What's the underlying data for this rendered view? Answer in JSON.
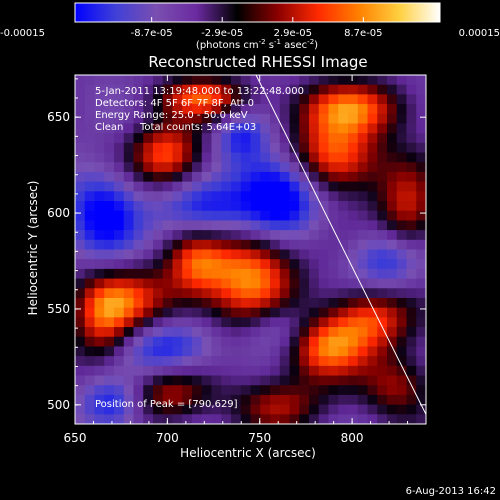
{
  "chart_data": {
    "type": "heatmap",
    "title": "Reconstructed RHESSI Image",
    "xlabel": "Heliocentric X (arcsec)",
    "ylabel": "Heliocentric Y (arcsec)",
    "xlim": [
      650,
      840
    ],
    "ylim": [
      490,
      672
    ],
    "x_ticks": [
      "650",
      "700",
      "750",
      "800"
    ],
    "x_tick_values": [
      650,
      700,
      750,
      800
    ],
    "y_ticks": [
      "500",
      "550",
      "600",
      "650"
    ],
    "y_tick_values": [
      500,
      550,
      600,
      650
    ],
    "colorbar": {
      "range": [
        -0.00015,
        0.00015
      ],
      "tick_labels": [
        "-0.00015",
        "-8.7e-05",
        "-2.9e-05",
        "2.9e-05",
        "8.7e-05",
        "0.00015"
      ],
      "tick_values": [
        -0.00015,
        -8.7e-05,
        -2.9e-05,
        2.9e-05,
        8.7e-05,
        0.00015
      ],
      "unit_label": "(photons cm",
      "unit_exp1": "-2",
      "unit_mid": " s",
      "unit_exp2": "-1",
      "unit_mid2": " asec",
      "unit_exp3": "-2",
      "unit_end": ")",
      "colors": [
        "#0000ff",
        "#4040d8",
        "#7a4fb0",
        "#6a2aa0",
        "#000000",
        "#8b0000",
        "#ff2a00",
        "#ff8000",
        "#ffd040",
        "#ffffff"
      ]
    },
    "annotations": [
      "5-Jan-2011 13:19:48.000 to 13:22:48.000",
      "Detectors: 4F 5F 6F 7F 8F, Att 0",
      "Energy Range: 25.0 - 50.0 keV",
      "Clean",
      "Total counts: 5.64E+03"
    ],
    "peak_label": "Position of Peak = [790,629]",
    "limb_line": [
      [
        748,
        672
      ],
      [
        840,
        495
      ]
    ],
    "sources": [
      {
        "x": 700,
        "y": 630,
        "sx": 14,
        "sy": 12,
        "a": 0.9
      },
      {
        "x": 720,
        "y": 660,
        "sx": 18,
        "sy": 8,
        "a": 0.8
      },
      {
        "x": 790,
        "y": 629,
        "sx": 18,
        "sy": 14,
        "a": 1.0
      },
      {
        "x": 800,
        "y": 655,
        "sx": 22,
        "sy": 10,
        "a": 0.8
      },
      {
        "x": 745,
        "y": 568,
        "sx": 18,
        "sy": 20,
        "a": 1.0
      },
      {
        "x": 715,
        "y": 575,
        "sx": 12,
        "sy": 14,
        "a": 0.7
      },
      {
        "x": 785,
        "y": 530,
        "sx": 16,
        "sy": 12,
        "a": 0.9
      },
      {
        "x": 810,
        "y": 545,
        "sx": 16,
        "sy": 12,
        "a": 0.8
      },
      {
        "x": 680,
        "y": 555,
        "sx": 20,
        "sy": 12,
        "a": 0.7
      },
      {
        "x": 665,
        "y": 540,
        "sx": 12,
        "sy": 16,
        "a": 0.6
      },
      {
        "x": 700,
        "y": 505,
        "sx": 16,
        "sy": 10,
        "a": 0.6
      },
      {
        "x": 760,
        "y": 500,
        "sx": 18,
        "sy": 10,
        "a": 0.6
      },
      {
        "x": 830,
        "y": 600,
        "sx": 12,
        "sy": 18,
        "a": 0.7
      },
      {
        "x": 825,
        "y": 510,
        "sx": 14,
        "sy": 12,
        "a": 0.6
      },
      {
        "x": 760,
        "y": 610,
        "sx": 16,
        "sy": 16,
        "a": -1.0
      },
      {
        "x": 720,
        "y": 600,
        "sx": 18,
        "sy": 12,
        "a": -0.7
      },
      {
        "x": 665,
        "y": 600,
        "sx": 14,
        "sy": 16,
        "a": -0.7
      },
      {
        "x": 700,
        "y": 530,
        "sx": 18,
        "sy": 10,
        "a": -0.6
      },
      {
        "x": 760,
        "y": 540,
        "sx": 14,
        "sy": 10,
        "a": -0.5
      },
      {
        "x": 820,
        "y": 575,
        "sx": 14,
        "sy": 12,
        "a": -0.6
      },
      {
        "x": 670,
        "y": 500,
        "sx": 12,
        "sy": 10,
        "a": -0.6
      },
      {
        "x": 740,
        "y": 640,
        "sx": 10,
        "sy": 10,
        "a": -0.5
      }
    ]
  },
  "footer": {
    "date": "6-Aug-2013 16:42"
  }
}
